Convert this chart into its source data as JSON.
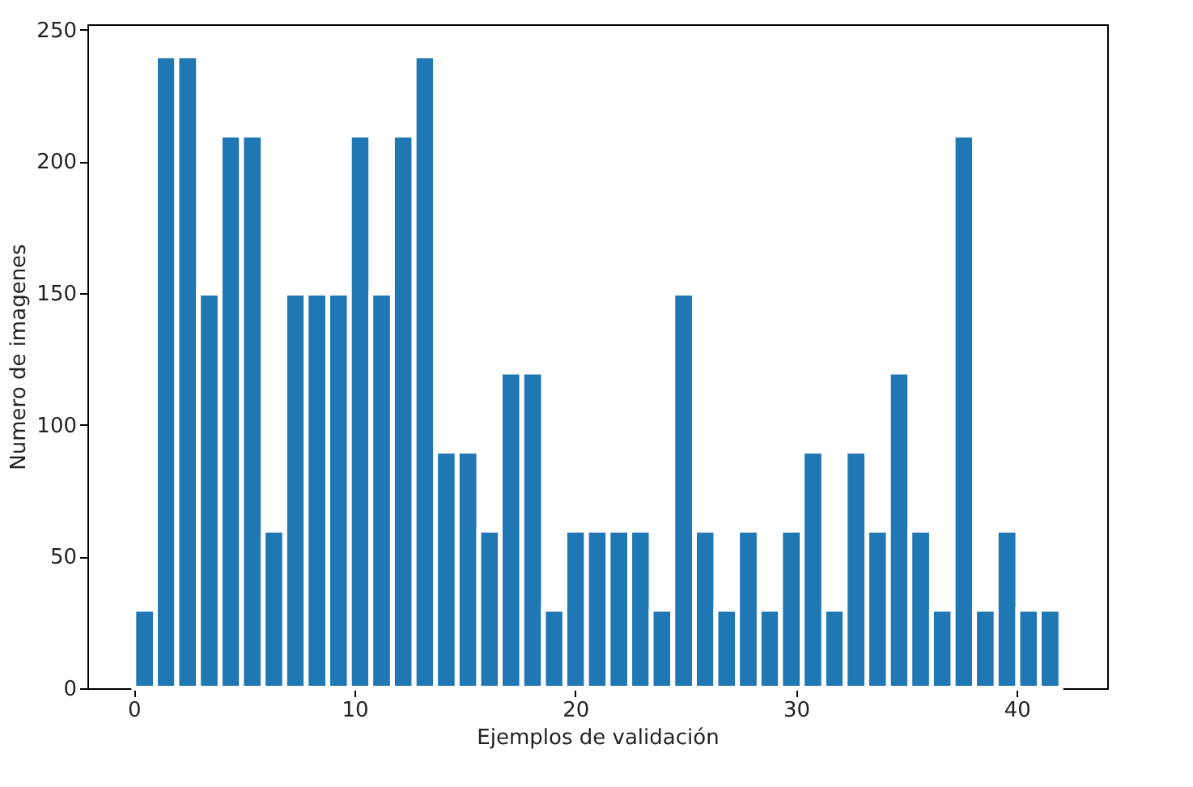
{
  "chart_data": {
    "type": "histogram",
    "xlabel": "Ejemplos de validación",
    "ylabel": "Numero de imagenes",
    "bins": [
      0,
      0.98,
      1.95,
      2.93,
      3.91,
      4.88,
      5.86,
      6.84,
      7.81,
      8.79,
      9.77,
      10.74,
      11.72,
      12.7,
      13.67,
      14.65,
      15.63,
      16.6,
      17.58,
      18.56,
      19.53,
      20.51,
      21.49,
      22.47,
      23.44,
      24.42,
      25.4,
      26.37,
      27.35,
      28.33,
      29.3,
      30.28,
      31.26,
      32.23,
      33.21,
      34.19,
      35.16,
      36.14,
      37.12,
      38.09,
      39.07,
      40.05,
      41.02,
      42
    ],
    "values": [
      30,
      240,
      240,
      150,
      210,
      210,
      60,
      150,
      150,
      150,
      210,
      150,
      210,
      240,
      90,
      90,
      60,
      120,
      120,
      30,
      60,
      60,
      60,
      60,
      30,
      150,
      60,
      30,
      60,
      30,
      60,
      90,
      30,
      90,
      60,
      120,
      60,
      30,
      210,
      30,
      60,
      30,
      30
    ],
    "color": "#1f77b4",
    "xlim": [
      -2.1,
      44.1
    ],
    "xticks": [
      0,
      10,
      20,
      30,
      40
    ],
    "ylim": [
      0,
      252
    ],
    "yticks": [
      0,
      50,
      100,
      150,
      200,
      250
    ],
    "grid": false
  }
}
